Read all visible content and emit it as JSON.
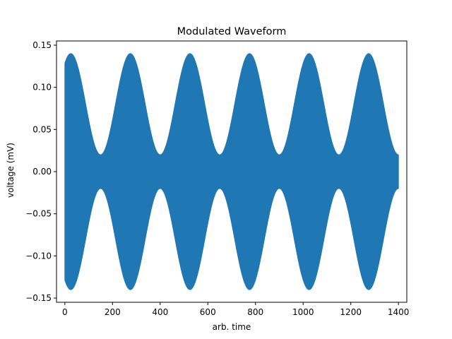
{
  "chart_data": {
    "type": "area",
    "title": "Modulated Waveform",
    "xlabel": "arb. time",
    "ylabel": "voltage (mV)",
    "xlim": [
      -35,
      1435
    ],
    "ylim": [
      -0.155,
      0.155
    ],
    "xticks": [
      0,
      200,
      400,
      600,
      800,
      1000,
      1200,
      1400
    ],
    "xtick_labels": [
      "0",
      "200",
      "400",
      "600",
      "800",
      "1000",
      "1200",
      "1400"
    ],
    "yticks": [
      0.15,
      0.1,
      0.05,
      0.0,
      -0.05,
      -0.1,
      -0.15
    ],
    "ytick_labels": [
      "0.15",
      "0.10",
      "0.05",
      "0.00",
      "−0.05",
      "−0.10",
      "−0.15"
    ],
    "grid": false,
    "series": [
      {
        "color": "#1f77b4",
        "x_range": [
          0,
          1400
        ],
        "envelope": {
          "model": "mean + amplitude * cos(2*pi*(x - peak_x)/period)",
          "mean": 0.08,
          "amplitude": 0.06,
          "period": 250,
          "peak_x": 25,
          "max": 0.14,
          "min": 0.02
        },
        "envelope_upper_points": [
          [
            0,
            0.133
          ],
          [
            25,
            0.14
          ],
          [
            150,
            0.022
          ],
          [
            275,
            0.14
          ],
          [
            400,
            0.022
          ],
          [
            525,
            0.14
          ],
          [
            650,
            0.022
          ],
          [
            775,
            0.14
          ],
          [
            900,
            0.022
          ],
          [
            1025,
            0.14
          ],
          [
            1150,
            0.022
          ],
          [
            1275,
            0.14
          ],
          [
            1400,
            0.022
          ]
        ]
      }
    ]
  }
}
